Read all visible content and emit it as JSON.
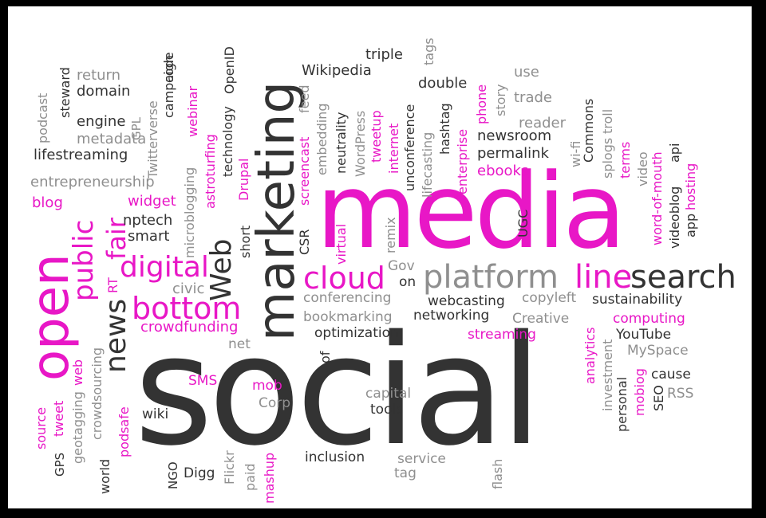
{
  "title": "Social media word cloud",
  "palette": {
    "dark": "#333333",
    "magenta": "#e817c6",
    "grey": "#8f8f8f",
    "background": "#ffffff"
  },
  "words": [
    {
      "id": "social",
      "text": "social"
    },
    {
      "id": "media",
      "text": "media"
    },
    {
      "id": "marketing",
      "text": "marketing"
    },
    {
      "id": "open",
      "text": "open"
    },
    {
      "id": "platform",
      "text": "platform"
    },
    {
      "id": "search",
      "text": "search"
    },
    {
      "id": "cloud",
      "text": "cloud"
    },
    {
      "id": "line",
      "text": "line"
    },
    {
      "id": "bottom",
      "text": "bottom"
    },
    {
      "id": "digital",
      "text": "digital"
    },
    {
      "id": "news",
      "text": "news"
    },
    {
      "id": "public",
      "text": "public"
    },
    {
      "id": "fair",
      "text": "fair"
    },
    {
      "id": "web-big",
      "text": "Web"
    },
    {
      "id": "crowdfunding",
      "text": "crowdfunding"
    },
    {
      "id": "wikipedia",
      "text": "Wikipedia"
    },
    {
      "id": "triple",
      "text": "triple"
    },
    {
      "id": "double",
      "text": "double"
    },
    {
      "id": "use",
      "text": "use"
    },
    {
      "id": "trade",
      "text": "trade"
    },
    {
      "id": "newsroom",
      "text": "newsroom"
    },
    {
      "id": "permalink",
      "text": "permalink"
    },
    {
      "id": "reader",
      "text": "reader"
    },
    {
      "id": "ebooks",
      "text": "ebooks"
    },
    {
      "id": "lifestreaming",
      "text": "lifestreaming"
    },
    {
      "id": "entrepreneurship",
      "text": "entrepreneurship"
    },
    {
      "id": "domain",
      "text": "domain"
    },
    {
      "id": "return",
      "text": "return"
    },
    {
      "id": "engine",
      "text": "engine"
    },
    {
      "id": "metadata",
      "text": "metadata"
    },
    {
      "id": "blog",
      "text": "blog"
    },
    {
      "id": "widget",
      "text": "widget"
    },
    {
      "id": "nptech",
      "text": "nptech"
    },
    {
      "id": "smart",
      "text": "smart"
    },
    {
      "id": "civic",
      "text": "civic"
    },
    {
      "id": "conferencing",
      "text": "conferencing"
    },
    {
      "id": "webcasting",
      "text": "webcasting"
    },
    {
      "id": "copyleft",
      "text": "copyleft"
    },
    {
      "id": "sustainability",
      "text": "sustainability"
    },
    {
      "id": "bookmarking",
      "text": "bookmarking"
    },
    {
      "id": "networking",
      "text": "networking"
    },
    {
      "id": "creative",
      "text": "Creative"
    },
    {
      "id": "computing",
      "text": "computing"
    },
    {
      "id": "optimization",
      "text": "optimization"
    },
    {
      "id": "streaming",
      "text": "streaming"
    },
    {
      "id": "youtube",
      "text": "YouTube"
    },
    {
      "id": "myspace",
      "text": "MySpace"
    },
    {
      "id": "cause",
      "text": "cause"
    },
    {
      "id": "rss",
      "text": "RSS"
    },
    {
      "id": "gov",
      "text": "Gov"
    },
    {
      "id": "on",
      "text": "on"
    },
    {
      "id": "net",
      "text": "net"
    },
    {
      "id": "sms",
      "text": "SMS"
    },
    {
      "id": "mob",
      "text": "mob"
    },
    {
      "id": "corp",
      "text": "Corp"
    },
    {
      "id": "capital",
      "text": "capital"
    },
    {
      "id": "tools",
      "text": "tools"
    },
    {
      "id": "wiki",
      "text": "wiki"
    },
    {
      "id": "digg",
      "text": "Digg"
    },
    {
      "id": "inclusion",
      "text": "inclusion"
    },
    {
      "id": "service",
      "text": "service"
    },
    {
      "id": "tag",
      "text": "tag"
    },
    {
      "id": "tags",
      "text": "tags"
    },
    {
      "id": "podcast",
      "text": "podcast"
    },
    {
      "id": "steward",
      "text": "steward"
    },
    {
      "id": "gpl",
      "text": "GPL"
    },
    {
      "id": "twitterverse",
      "text": "Twitterverse"
    },
    {
      "id": "campaign",
      "text": "campaign"
    },
    {
      "id": "code",
      "text": "code"
    },
    {
      "id": "webinar",
      "text": "webinar"
    },
    {
      "id": "openid",
      "text": "OpenID"
    },
    {
      "id": "technology",
      "text": "technology"
    },
    {
      "id": "microblogging",
      "text": "microblogging"
    },
    {
      "id": "astroturfing",
      "text": "astroturfing"
    },
    {
      "id": "drupal",
      "text": "Drupal"
    },
    {
      "id": "short",
      "text": "short"
    },
    {
      "id": "csr",
      "text": "CSR"
    },
    {
      "id": "screencast",
      "text": "screencast"
    },
    {
      "id": "feed",
      "text": "feed"
    },
    {
      "id": "embedding",
      "text": "embedding"
    },
    {
      "id": "neutrality",
      "text": "neutrality"
    },
    {
      "id": "wordpress",
      "text": "WordPress"
    },
    {
      "id": "tweetup",
      "text": "tweetup"
    },
    {
      "id": "internet",
      "text": "internet"
    },
    {
      "id": "unconference",
      "text": "unconference"
    },
    {
      "id": "lifecasting",
      "text": "lifecasting"
    },
    {
      "id": "hashtag",
      "text": "hashtag"
    },
    {
      "id": "enterprise",
      "text": "enterprise"
    },
    {
      "id": "phone",
      "text": "phone"
    },
    {
      "id": "story",
      "text": "story"
    },
    {
      "id": "commons",
      "text": "Commons"
    },
    {
      "id": "wifi",
      "text": "wi-fi"
    },
    {
      "id": "splogs",
      "text": "splogs"
    },
    {
      "id": "troll",
      "text": "troll"
    },
    {
      "id": "terms",
      "text": "terms"
    },
    {
      "id": "video",
      "text": "video"
    },
    {
      "id": "word-of-mouth",
      "text": "word-of-mouth"
    },
    {
      "id": "videoblog",
      "text": "videoblog"
    },
    {
      "id": "api",
      "text": "api"
    },
    {
      "id": "app",
      "text": "app"
    },
    {
      "id": "hosting",
      "text": "hosting"
    },
    {
      "id": "ugc",
      "text": "UGC"
    },
    {
      "id": "virtual",
      "text": "virtual"
    },
    {
      "id": "remix",
      "text": "remix"
    },
    {
      "id": "rt",
      "text": "RT"
    },
    {
      "id": "of",
      "text": "of"
    },
    {
      "id": "analytics",
      "text": "analytics"
    },
    {
      "id": "investment",
      "text": "investment"
    },
    {
      "id": "personal",
      "text": "personal"
    },
    {
      "id": "mobiog",
      "text": "mobiog"
    },
    {
      "id": "seo",
      "text": "SEO"
    },
    {
      "id": "source",
      "text": "source"
    },
    {
      "id": "tweet",
      "text": "tweet"
    },
    {
      "id": "web-small",
      "text": "web"
    },
    {
      "id": "geotagging",
      "text": "geotagging"
    },
    {
      "id": "gps",
      "text": "GPS"
    },
    {
      "id": "crowdsourcing",
      "text": "crowdsourcing"
    },
    {
      "id": "podsafe",
      "text": "podsafe"
    },
    {
      "id": "world",
      "text": "world"
    },
    {
      "id": "ngo",
      "text": "NGO"
    },
    {
      "id": "flickr",
      "text": "Flickr"
    },
    {
      "id": "paid",
      "text": "paid"
    },
    {
      "id": "mashup",
      "text": "mashup"
    },
    {
      "id": "flash",
      "text": "flash"
    }
  ]
}
